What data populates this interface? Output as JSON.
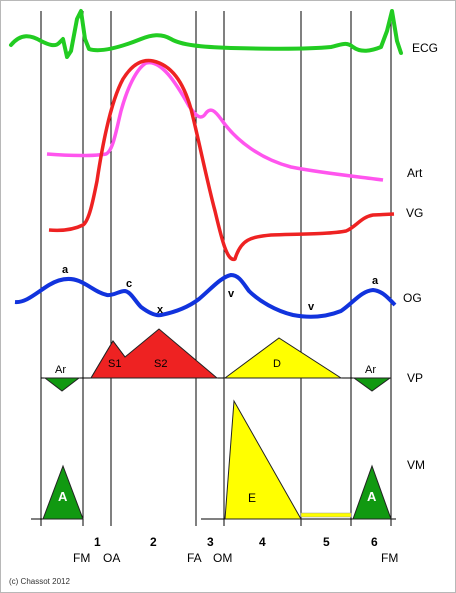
{
  "trace_labels": {
    "ecg": "ECG",
    "art": "Art",
    "vg": "VG",
    "og": "OG",
    "vp": "VP",
    "vm": "VM"
  },
  "wave_labels": {
    "a_left": "a",
    "c": "c",
    "x": "x",
    "v_left": "v",
    "v_right": "v",
    "a_right": "a"
  },
  "vp_labels": {
    "ar_left": "Ar",
    "s1": "S1",
    "s2": "S2",
    "d": "D",
    "ar_right": "Ar"
  },
  "vm_labels": {
    "a_left": "A",
    "e": "E",
    "a_right": "A"
  },
  "phase_numbers": [
    "1",
    "2",
    "3",
    "4",
    "5",
    "6"
  ],
  "valve_events": {
    "fm_left": "FM",
    "oa": "OA",
    "fa": "FA",
    "om": "OM",
    "fm_right": "FM"
  },
  "copyright": "(c) Chassot 2012",
  "colors": {
    "ecg": "#22cc22",
    "art": "#ff55ee",
    "vg": "#ee2222",
    "og": "#1133dd",
    "vp_systolic": "#ee2222",
    "vp_diastolic": "#ffff00",
    "atrial": "#119911"
  }
}
